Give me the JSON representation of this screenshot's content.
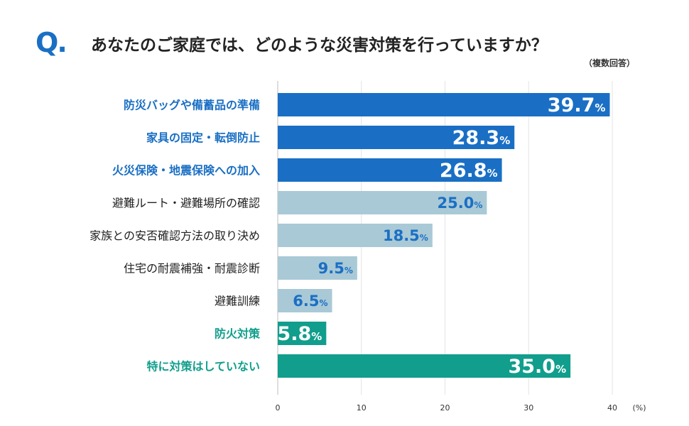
{
  "header": {
    "q_mark": "Q",
    "q_dot": ".",
    "title": "あなたのご家庭では、どのような災害対策を行っていますか？",
    "subtitle": "（複数回答）"
  },
  "colors": {
    "q_mark": "#1a6fc4",
    "dark_blue": "#1a6fc4",
    "light_blue": "#a9c9d6",
    "teal": "#119e8c",
    "value_on_light": "#1a6fc4",
    "grid": "#e3e3e3"
  },
  "chart_data": {
    "type": "bar",
    "orientation": "horizontal",
    "categories": [
      "防災バッグや備蓄品の準備",
      "家具の固定・転倒防止",
      "火災保険・地震保険への加入",
      "避難ルート・避難場所の確認",
      "家族との安否確認方法の取り決め",
      "住宅の耐震補強・耐震診断",
      "避難訓練",
      "防火対策",
      "特に対策はしていない"
    ],
    "values": [
      39.7,
      28.3,
      26.8,
      25.0,
      18.5,
      9.5,
      6.5,
      5.8,
      35.0
    ],
    "value_labels": [
      "39.7",
      "28.3",
      "26.8",
      "25.0",
      "18.5",
      "9.5",
      "6.5",
      "5.8",
      "35.0"
    ],
    "value_unit": "%",
    "bar_groups": [
      "dark",
      "dark",
      "dark",
      "light",
      "light",
      "light",
      "light",
      "teal",
      "teal"
    ],
    "xlim": [
      0,
      40
    ],
    "xticks": [
      "0",
      "10",
      "20",
      "30",
      "40"
    ],
    "x_unit_label": "(%)",
    "grid": true
  }
}
